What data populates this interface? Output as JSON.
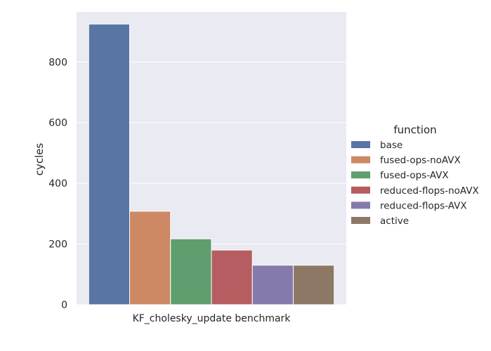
{
  "chart_data": {
    "type": "bar",
    "title": "",
    "xlabel": "",
    "ylabel": "cycles",
    "categories": [
      "KF_cholesky_update benchmark"
    ],
    "ylim": [
      0,
      965
    ],
    "yticks": [
      0,
      200,
      400,
      600,
      800
    ],
    "grid": true,
    "legend_placement": "right",
    "legend_title": "function",
    "series": [
      {
        "name": "base",
        "values": [
          925
        ],
        "color": "#5875a4"
      },
      {
        "name": "fused-ops-noAVX",
        "values": [
          308
        ],
        "color": "#cc8963"
      },
      {
        "name": "fused-ops-AVX",
        "values": [
          217
        ],
        "color": "#5f9e6e"
      },
      {
        "name": "reduced-flops-noAVX",
        "values": [
          180
        ],
        "color": "#b55d60"
      },
      {
        "name": "reduced-flops-AVX",
        "values": [
          130
        ],
        "color": "#857aab"
      },
      {
        "name": "active",
        "values": [
          130
        ],
        "color": "#8d7866"
      }
    ]
  },
  "colors": {
    "plot_background": "#eaeaf2",
    "grid": "#ffffff",
    "text": "#262626"
  }
}
